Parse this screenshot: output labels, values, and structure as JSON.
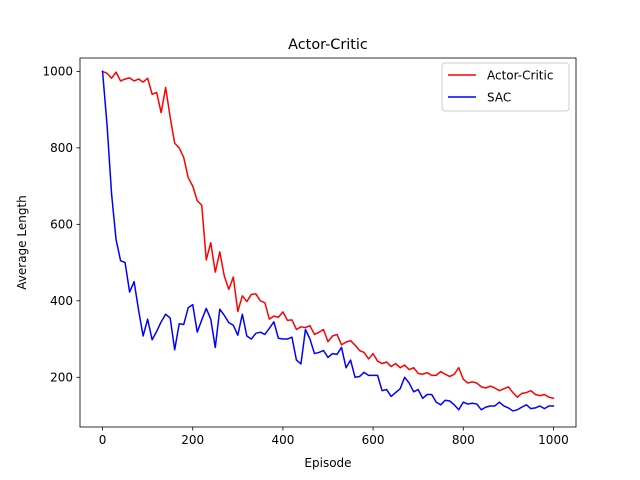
{
  "chart_data": {
    "type": "line",
    "title": "Actor-Critic",
    "xlabel": "Episode",
    "ylabel": "Average Length",
    "xlim": [
      -50,
      1050
    ],
    "ylim": [
      70,
      1035
    ],
    "xticks": [
      0,
      200,
      400,
      600,
      800,
      1000
    ],
    "yticks": [
      200,
      400,
      600,
      800,
      1000
    ],
    "grid": false,
    "legend_position": "upper right",
    "x": [
      0,
      10,
      20,
      30,
      40,
      50,
      60,
      70,
      80,
      90,
      100,
      110,
      120,
      130,
      140,
      150,
      160,
      170,
      180,
      190,
      200,
      210,
      220,
      230,
      240,
      250,
      260,
      270,
      280,
      290,
      300,
      310,
      320,
      330,
      340,
      350,
      360,
      370,
      380,
      390,
      400,
      410,
      420,
      430,
      440,
      450,
      460,
      470,
      480,
      490,
      500,
      510,
      520,
      530,
      540,
      550,
      560,
      570,
      580,
      590,
      600,
      610,
      620,
      630,
      640,
      650,
      660,
      670,
      680,
      690,
      700,
      710,
      720,
      730,
      740,
      750,
      760,
      770,
      780,
      790,
      800,
      810,
      820,
      830,
      840,
      850,
      860,
      870,
      880,
      890,
      900,
      910,
      920,
      930,
      940,
      950,
      960,
      970,
      980,
      990,
      1000
    ],
    "series": [
      {
        "name": "Actor-Critic",
        "color": "#ff0000",
        "values": [
          1000,
          995,
          982,
          998,
          975,
          980,
          983,
          975,
          980,
          972,
          982,
          940,
          945,
          892,
          958,
          880,
          812,
          800,
          775,
          722,
          700,
          662,
          650,
          507,
          552,
          475,
          528,
          465,
          430,
          462,
          372,
          413,
          398,
          417,
          418,
          400,
          395,
          352,
          360,
          357,
          371,
          349,
          350,
          325,
          332,
          330,
          335,
          312,
          318,
          325,
          293,
          308,
          312,
          285,
          292,
          296,
          284,
          270,
          265,
          248,
          262,
          242,
          236,
          240,
          228,
          236,
          225,
          232,
          220,
          225,
          210,
          208,
          212,
          205,
          205,
          215,
          208,
          202,
          208,
          225,
          195,
          185,
          188,
          185,
          175,
          172,
          177,
          172,
          165,
          170,
          175,
          160,
          148,
          158,
          160,
          165,
          155,
          152,
          155,
          148,
          145
        ]
      },
      {
        "name": "SAC",
        "color": "#0000ff",
        "values": [
          1000,
          860,
          680,
          560,
          505,
          500,
          423,
          450,
          375,
          308,
          352,
          298,
          320,
          345,
          365,
          355,
          272,
          340,
          338,
          382,
          390,
          318,
          350,
          380,
          352,
          278,
          378,
          362,
          343,
          336,
          310,
          365,
          308,
          300,
          315,
          318,
          312,
          328,
          345,
          302,
          300,
          300,
          305,
          245,
          235,
          325,
          300,
          262,
          265,
          270,
          252,
          262,
          260,
          278,
          225,
          245,
          200,
          202,
          213,
          205,
          205,
          205,
          165,
          168,
          150,
          160,
          170,
          200,
          185,
          162,
          168,
          145,
          155,
          155,
          135,
          128,
          140,
          138,
          128,
          115,
          135,
          130,
          132,
          130,
          115,
          122,
          125,
          125,
          135,
          125,
          120,
          112,
          115,
          122,
          128,
          118,
          120,
          125,
          118,
          125,
          125
        ]
      }
    ]
  }
}
